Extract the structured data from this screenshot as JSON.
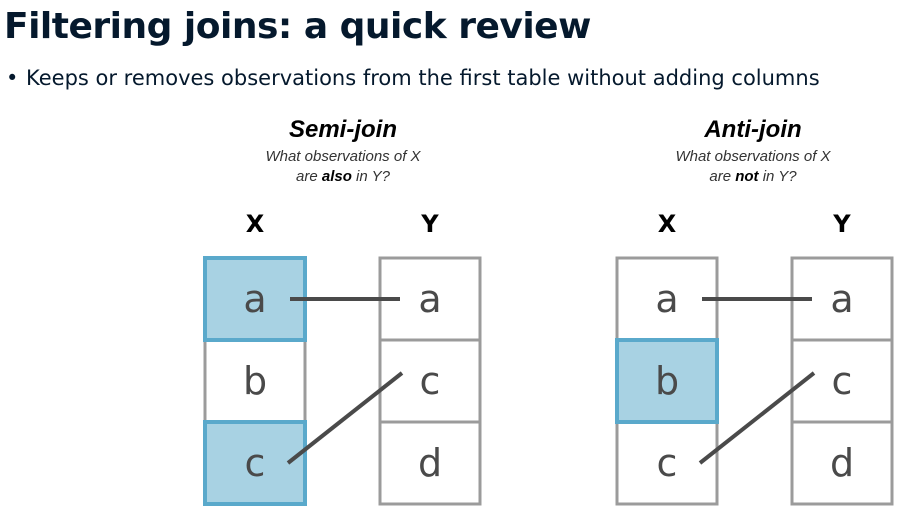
{
  "title": "Filtering joins: a quick review",
  "bullet": "Keeps or removes observations from the first table without adding columns",
  "colors": {
    "highlight_fill": "#a8d2e3",
    "highlight_stroke": "#5aa9cb",
    "cell_stroke": "#9b9b9b",
    "line": "#4a4a4a"
  },
  "panels": [
    {
      "title": "Semi-join",
      "sub_line1": "What observations of X",
      "sub_line2_pre": "are ",
      "sub_line2_bold": "also",
      "sub_line2_post": " in Y?",
      "x_label": "X",
      "y_label": "Y",
      "x_cells": [
        {
          "label": "a",
          "highlight": true
        },
        {
          "label": "b",
          "highlight": false
        },
        {
          "label": "c",
          "highlight": true
        }
      ],
      "y_cells": [
        {
          "label": "a"
        },
        {
          "label": "c"
        },
        {
          "label": "d"
        }
      ],
      "links": [
        [
          0,
          0
        ],
        [
          2,
          1
        ]
      ]
    },
    {
      "title": "Anti-join",
      "sub_line1": "What observations of X",
      "sub_line2_pre": "are ",
      "sub_line2_bold": "not",
      "sub_line2_post": " in Y?",
      "x_label": "X",
      "y_label": "Y",
      "x_cells": [
        {
          "label": "a",
          "highlight": false
        },
        {
          "label": "b",
          "highlight": true
        },
        {
          "label": "c",
          "highlight": false
        }
      ],
      "y_cells": [
        {
          "label": "a"
        },
        {
          "label": "c"
        },
        {
          "label": "d"
        }
      ],
      "links": [
        [
          0,
          0
        ],
        [
          2,
          1
        ]
      ]
    }
  ]
}
